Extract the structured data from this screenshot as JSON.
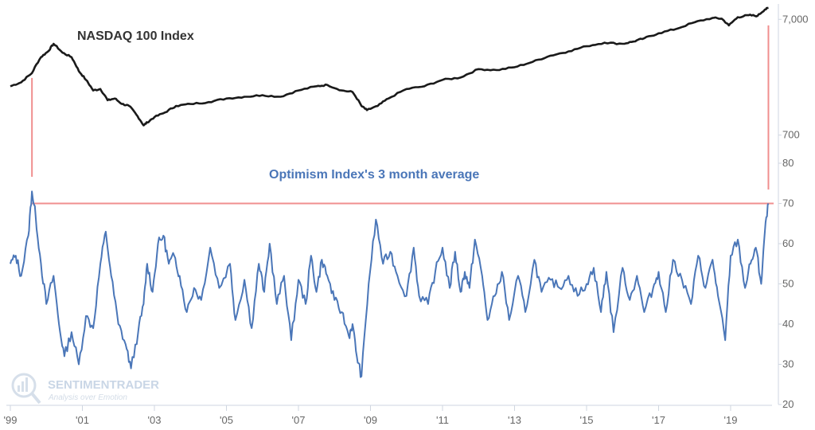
{
  "chart_data": [
    {
      "type": "line",
      "title": "NASDAQ 100 Index",
      "y_scale": "log",
      "ylim": [
        400,
        9500
      ],
      "y_tick_labels": [
        {
          "value": 700,
          "label": "700"
        },
        {
          "value": 7000,
          "label": "7,000"
        }
      ],
      "series": [
        {
          "color": "#1a1a1a",
          "x": [
            1999.0,
            1999.3,
            1999.6,
            1999.85,
            2000.05,
            2000.2,
            2000.45,
            2000.7,
            2000.9,
            2001.1,
            2001.3,
            2001.5,
            2001.7,
            2001.9,
            2002.1,
            2002.3,
            2002.5,
            2002.7,
            2002.8,
            2003.0,
            2003.3,
            2003.6,
            2004.0,
            2004.5,
            2005.0,
            2005.5,
            2006.0,
            2006.5,
            2007.0,
            2007.5,
            2007.8,
            2008.2,
            2008.5,
            2008.75,
            2008.9,
            2009.2,
            2009.5,
            2010.0,
            2010.5,
            2011.0,
            2011.5,
            2012.0,
            2012.5,
            2013.0,
            2013.5,
            2014.0,
            2014.5,
            2015.0,
            2015.5,
            2016.0,
            2016.3,
            2016.6,
            2017.0,
            2017.5,
            2018.0,
            2018.5,
            2018.75,
            2018.95,
            2019.2,
            2019.5,
            2019.75,
            2019.95,
            2020.05
          ],
          "values": [
            1850,
            2000,
            2400,
            3300,
            3700,
            4300,
            3600,
            3300,
            2500,
            2100,
            1700,
            1750,
            1400,
            1450,
            1300,
            1250,
            1050,
            850,
            900,
            1000,
            1100,
            1250,
            1300,
            1350,
            1450,
            1500,
            1550,
            1500,
            1700,
            1850,
            1900,
            1700,
            1650,
            1250,
            1150,
            1250,
            1450,
            1750,
            1850,
            2100,
            2200,
            2600,
            2550,
            2700,
            3000,
            3400,
            3700,
            4100,
            4400,
            4300,
            4500,
            4800,
            5300,
            5800,
            6600,
            7200,
            7100,
            6200,
            7300,
            7600,
            7500,
            8500,
            8800
          ]
        }
      ]
    },
    {
      "type": "line",
      "title": "Optimism Index's 3 month average",
      "ylim": [
        20,
        80
      ],
      "y_ticks": [
        20,
        30,
        40,
        50,
        60,
        70,
        80
      ],
      "reference_line": 70,
      "series": [
        {
          "color": "#4a76b8",
          "x": [
            1999.0,
            1999.15,
            1999.3,
            1999.5,
            1999.6,
            1999.7,
            1999.85,
            2000.0,
            2000.2,
            2000.35,
            2000.5,
            2000.7,
            2000.9,
            2001.1,
            2001.3,
            2001.5,
            2001.65,
            2001.8,
            2002.0,
            2002.2,
            2002.35,
            2002.55,
            2002.7,
            2002.8,
            2002.95,
            2003.1,
            2003.25,
            2003.4,
            2003.55,
            2003.7,
            2003.9,
            2004.1,
            2004.3,
            2004.55,
            2004.8,
            2005.1,
            2005.25,
            2005.5,
            2005.7,
            2005.9,
            2006.05,
            2006.2,
            2006.4,
            2006.6,
            2006.8,
            2007.0,
            2007.2,
            2007.35,
            2007.5,
            2007.65,
            2007.8,
            2008.0,
            2008.2,
            2008.4,
            2008.5,
            2008.62,
            2008.75,
            2008.95,
            2009.15,
            2009.35,
            2009.55,
            2009.75,
            2010.0,
            2010.2,
            2010.35,
            2010.6,
            2010.8,
            2011.0,
            2011.2,
            2011.35,
            2011.5,
            2011.62,
            2011.75,
            2011.9,
            2012.1,
            2012.25,
            2012.45,
            2012.65,
            2012.85,
            2013.1,
            2013.3,
            2013.55,
            2013.75,
            2014.0,
            2014.25,
            2014.5,
            2014.75,
            2015.0,
            2015.2,
            2015.4,
            2015.55,
            2015.75,
            2016.0,
            2016.2,
            2016.4,
            2016.6,
            2016.85,
            2017.0,
            2017.2,
            2017.4,
            2017.65,
            2017.9,
            2018.1,
            2018.3,
            2018.5,
            2018.65,
            2018.85,
            2019.0,
            2019.2,
            2019.4,
            2019.55,
            2019.7,
            2019.85,
            2019.95,
            2020.05
          ],
          "values": [
            55,
            57,
            52,
            62,
            73,
            67,
            55,
            45,
            52,
            40,
            32,
            38,
            30,
            42,
            39,
            55,
            63,
            52,
            40,
            35,
            29,
            38,
            45,
            55,
            48,
            60,
            62,
            55,
            57,
            52,
            43,
            49,
            46,
            59,
            49,
            55,
            41,
            51,
            39,
            55,
            48,
            60,
            45,
            52,
            36,
            51,
            45,
            57,
            48,
            56,
            52,
            46,
            43,
            37,
            40,
            32,
            27,
            50,
            66,
            55,
            58,
            52,
            47,
            59,
            47,
            45,
            53,
            59,
            49,
            58,
            48,
            53,
            49,
            61,
            52,
            41,
            47,
            53,
            41,
            52,
            43,
            56,
            48,
            51,
            49,
            52,
            47,
            50,
            54,
            43,
            53,
            38,
            54,
            46,
            52,
            43,
            49,
            53,
            43,
            56,
            51,
            45,
            57,
            49,
            56,
            47,
            36,
            57,
            61,
            49,
            55,
            59,
            50,
            63,
            70
          ]
        }
      ]
    }
  ],
  "x_axis": {
    "range": [
      1999,
      2020.15
    ],
    "ticks": [
      {
        "value": 1999,
        "label": "'99"
      },
      {
        "value": 2001,
        "label": "'01"
      },
      {
        "value": 2003,
        "label": "'03"
      },
      {
        "value": 2005,
        "label": "'05"
      },
      {
        "value": 2007,
        "label": "'07"
      },
      {
        "value": 2009,
        "label": "'09"
      },
      {
        "value": 2011,
        "label": "'11"
      },
      {
        "value": 2013,
        "label": "'13"
      },
      {
        "value": 2015,
        "label": "'15"
      },
      {
        "value": 2017,
        "label": "'17"
      },
      {
        "value": 2019,
        "label": "'19"
      }
    ]
  },
  "markers": {
    "color": "#f08f8f",
    "peak_x": 1999.6,
    "current_x": 2020.05,
    "level": 70
  },
  "colors": {
    "nasdaq_title": "#333333",
    "optimism_title": "#4a76b8",
    "axis": "#cfd6e0",
    "tick_text": "#666666"
  },
  "watermark": {
    "brand": "SENTIMENTRADER",
    "tagline": "Analysis over Emotion"
  }
}
